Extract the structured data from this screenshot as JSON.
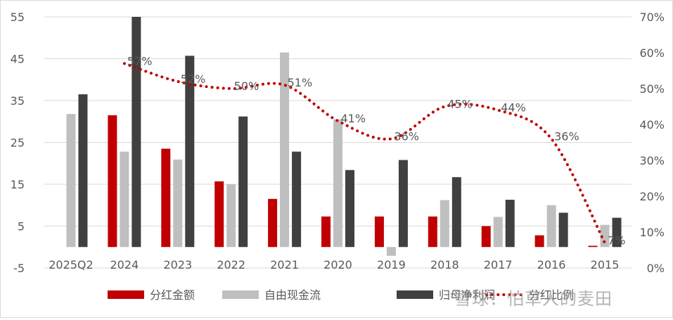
{
  "chart_data": {
    "type": "bar",
    "categories": [
      "2025Q2",
      "2024",
      "2023",
      "2022",
      "2021",
      "2020",
      "2019",
      "2018",
      "2017",
      "2016",
      "2015"
    ],
    "series": [
      {
        "name": "分红金额",
        "type": "bar",
        "axis": "left",
        "color": "#c00000",
        "values": [
          null,
          31.5,
          23.5,
          15.7,
          11.5,
          7.3,
          7.3,
          7.3,
          5.0,
          2.8,
          0.3
        ]
      },
      {
        "name": "自由现金流",
        "type": "bar",
        "axis": "left",
        "color": "#bfbfbf",
        "values": [
          31.8,
          22.8,
          20.9,
          15.0,
          46.5,
          30.5,
          -2.1,
          11.2,
          7.2,
          10.0,
          5.3
        ]
      },
      {
        "name": "归母净利润",
        "type": "bar",
        "axis": "left",
        "color": "#404040",
        "values": [
          36.5,
          55.0,
          45.7,
          31.2,
          22.8,
          18.4,
          20.8,
          16.7,
          11.3,
          8.2,
          7.0
        ]
      },
      {
        "name": "分红比例",
        "type": "line",
        "axis": "right",
        "color": "#c00000",
        "style": "dotted",
        "values": [
          null,
          57,
          52,
          50,
          51,
          41,
          36,
          45,
          44,
          36,
          7
        ],
        "labels": [
          null,
          "57%",
          "52%",
          "50%",
          "51%",
          "41%",
          "36%",
          "45%",
          "44%",
          "36%",
          "7%"
        ]
      }
    ],
    "y_left": {
      "ticks": [
        "55",
        "45",
        "35",
        "25",
        "15",
        "5",
        "-5"
      ],
      "ylim": [
        -5,
        55
      ]
    },
    "y_right": {
      "ticks": [
        "70%",
        "60%",
        "50%",
        "40%",
        "30%",
        "20%",
        "10%",
        "0%"
      ],
      "ylim": [
        0,
        70
      ]
    },
    "legend_position": "bottom",
    "grid": true
  },
  "watermark": "雪球：怕草人的麦田"
}
